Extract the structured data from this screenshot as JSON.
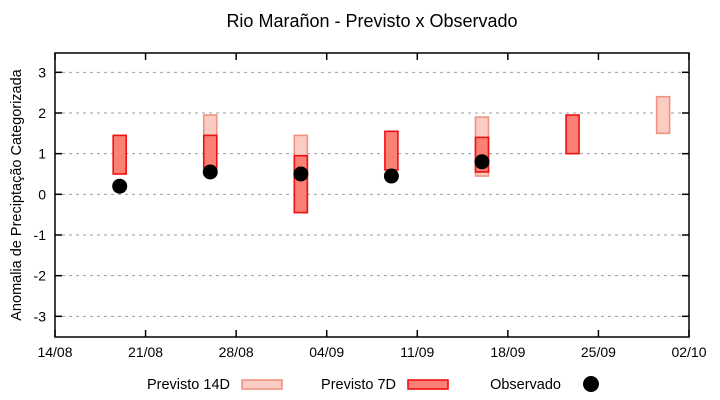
{
  "chart_data": {
    "type": "bar",
    "subtype": "forecast-range-boxes-with-observed-scatter",
    "title": "Rio Marañon - Previsto x Observado",
    "xlabel": "",
    "ylabel": "Anomalia de Preciptação Categorizada",
    "ylim": [
      -3.5,
      3.5
    ],
    "y_ticks": [
      -3,
      -2,
      -1,
      0,
      1,
      2,
      3
    ],
    "x_tick_labels": [
      "14/08",
      "21/08",
      "28/08",
      "04/09",
      "11/09",
      "18/09",
      "25/09",
      "02/10"
    ],
    "x_tick_days": [
      0,
      7,
      14,
      21,
      28,
      35,
      42,
      49
    ],
    "x_range_days": [
      0,
      49
    ],
    "grid": true,
    "grid_style": "dashed",
    "legend_position": "bottom-center",
    "colors": {
      "grid": "#9e9e9e",
      "axis": "#000000",
      "previsto_14d_fill": "#fbccc2",
      "previsto_14d_border": "#f09382",
      "previsto_7d_fill": "#fb8075",
      "previsto_7d_border": "#ee1111",
      "observado": "#000000"
    },
    "series": [
      {
        "name": "Previsto 14D",
        "type": "range",
        "fill": "#fbccc2",
        "border": "#f09382",
        "points": [
          {
            "date": "26/08",
            "day": 12,
            "low": 1.0,
            "high": 1.95
          },
          {
            "date": "02/09",
            "day": 19,
            "low": -0.45,
            "high": 1.45
          },
          {
            "date": "16/09",
            "day": 33,
            "low": 0.45,
            "high": 1.9
          },
          {
            "date": "30/09",
            "day": 47,
            "low": 1.5,
            "high": 2.4
          }
        ]
      },
      {
        "name": "Previsto 7D",
        "type": "range",
        "fill": "#fb8075",
        "border": "#ee1111",
        "points": [
          {
            "date": "19/08",
            "day": 5,
            "low": 0.5,
            "high": 1.45
          },
          {
            "date": "26/08",
            "day": 12,
            "low": 0.65,
            "high": 1.45
          },
          {
            "date": "02/09",
            "day": 19,
            "low": -0.45,
            "high": 0.95
          },
          {
            "date": "09/09",
            "day": 26,
            "low": 0.6,
            "high": 1.55
          },
          {
            "date": "16/09",
            "day": 33,
            "low": 0.55,
            "high": 1.4
          },
          {
            "date": "23/09",
            "day": 40,
            "low": 1.0,
            "high": 1.95
          }
        ]
      },
      {
        "name": "Observado",
        "type": "scatter",
        "color": "#000000",
        "points": [
          {
            "date": "19/08",
            "day": 5,
            "value": 0.2
          },
          {
            "date": "26/08",
            "day": 12,
            "value": 0.55
          },
          {
            "date": "02/09",
            "day": 19,
            "value": 0.5
          },
          {
            "date": "09/09",
            "day": 26,
            "value": 0.45
          },
          {
            "date": "16/09",
            "day": 33,
            "value": 0.8
          }
        ]
      }
    ]
  }
}
